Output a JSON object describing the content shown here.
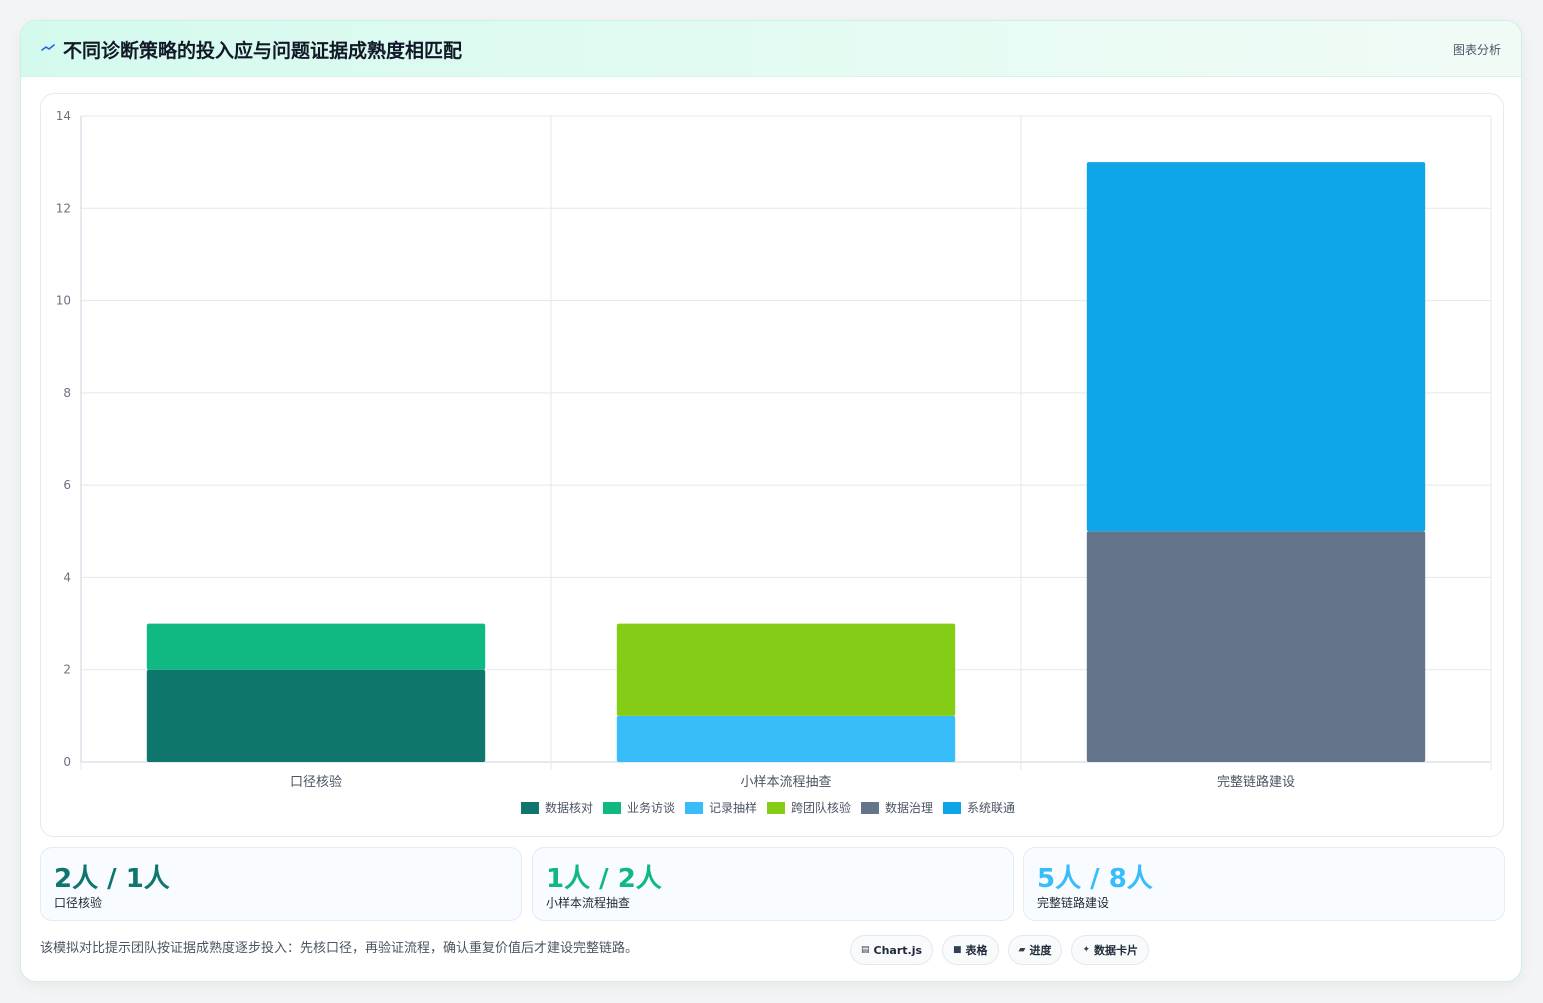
{
  "header": {
    "title": "不同诊断策略的投入应与问题证据成熟度相匹配",
    "link": "图表分析"
  },
  "chart_data": {
    "type": "bar",
    "stacked": true,
    "categories": [
      "口径核验",
      "小样本流程抽查",
      "完整链路建设"
    ],
    "ylim": [
      0,
      14
    ],
    "yticks": [
      0,
      2,
      4,
      6,
      8,
      10,
      12,
      14
    ],
    "grid": true,
    "legend_position": "bottom",
    "series": [
      {
        "name": "数据核对",
        "color": "#0f766e",
        "values": [
          2,
          0,
          0
        ]
      },
      {
        "name": "业务访谈",
        "color": "#10b981",
        "values": [
          1,
          0,
          0
        ]
      },
      {
        "name": "记录抽样",
        "color": "#38bdf8",
        "values": [
          0,
          1,
          0
        ]
      },
      {
        "name": "跨团队核验",
        "color": "#84cc16",
        "values": [
          0,
          2,
          0
        ]
      },
      {
        "name": "数据治理",
        "color": "#64748b",
        "values": [
          0,
          0,
          5
        ]
      },
      {
        "name": "系统联通",
        "color": "#0ea5e9",
        "values": [
          0,
          0,
          8
        ]
      }
    ]
  },
  "stats": [
    {
      "value": "2人 / 1人",
      "label": "口径核验",
      "color": "#0f766e"
    },
    {
      "value": "1人 / 2人",
      "label": "小样本流程抽查",
      "color": "#10b981"
    },
    {
      "value": "5人 / 8人",
      "label": "完整链路建设",
      "color": "#38bdf8"
    }
  ],
  "footnote": "该模拟对比提示团队按证据成熟度逐步投入：先核口径，再验证流程，确认重复价值后才建设完整链路。",
  "tags": [
    {
      "icon": "chart-icon",
      "glyph": "▤",
      "label": "Chart.js"
    },
    {
      "icon": "table-icon",
      "glyph": "■",
      "label": "表格"
    },
    {
      "icon": "progress-icon",
      "glyph": "▰",
      "label": "进度"
    },
    {
      "icon": "data-card-icon",
      "glyph": "✦",
      "label": "数据卡片"
    }
  ]
}
